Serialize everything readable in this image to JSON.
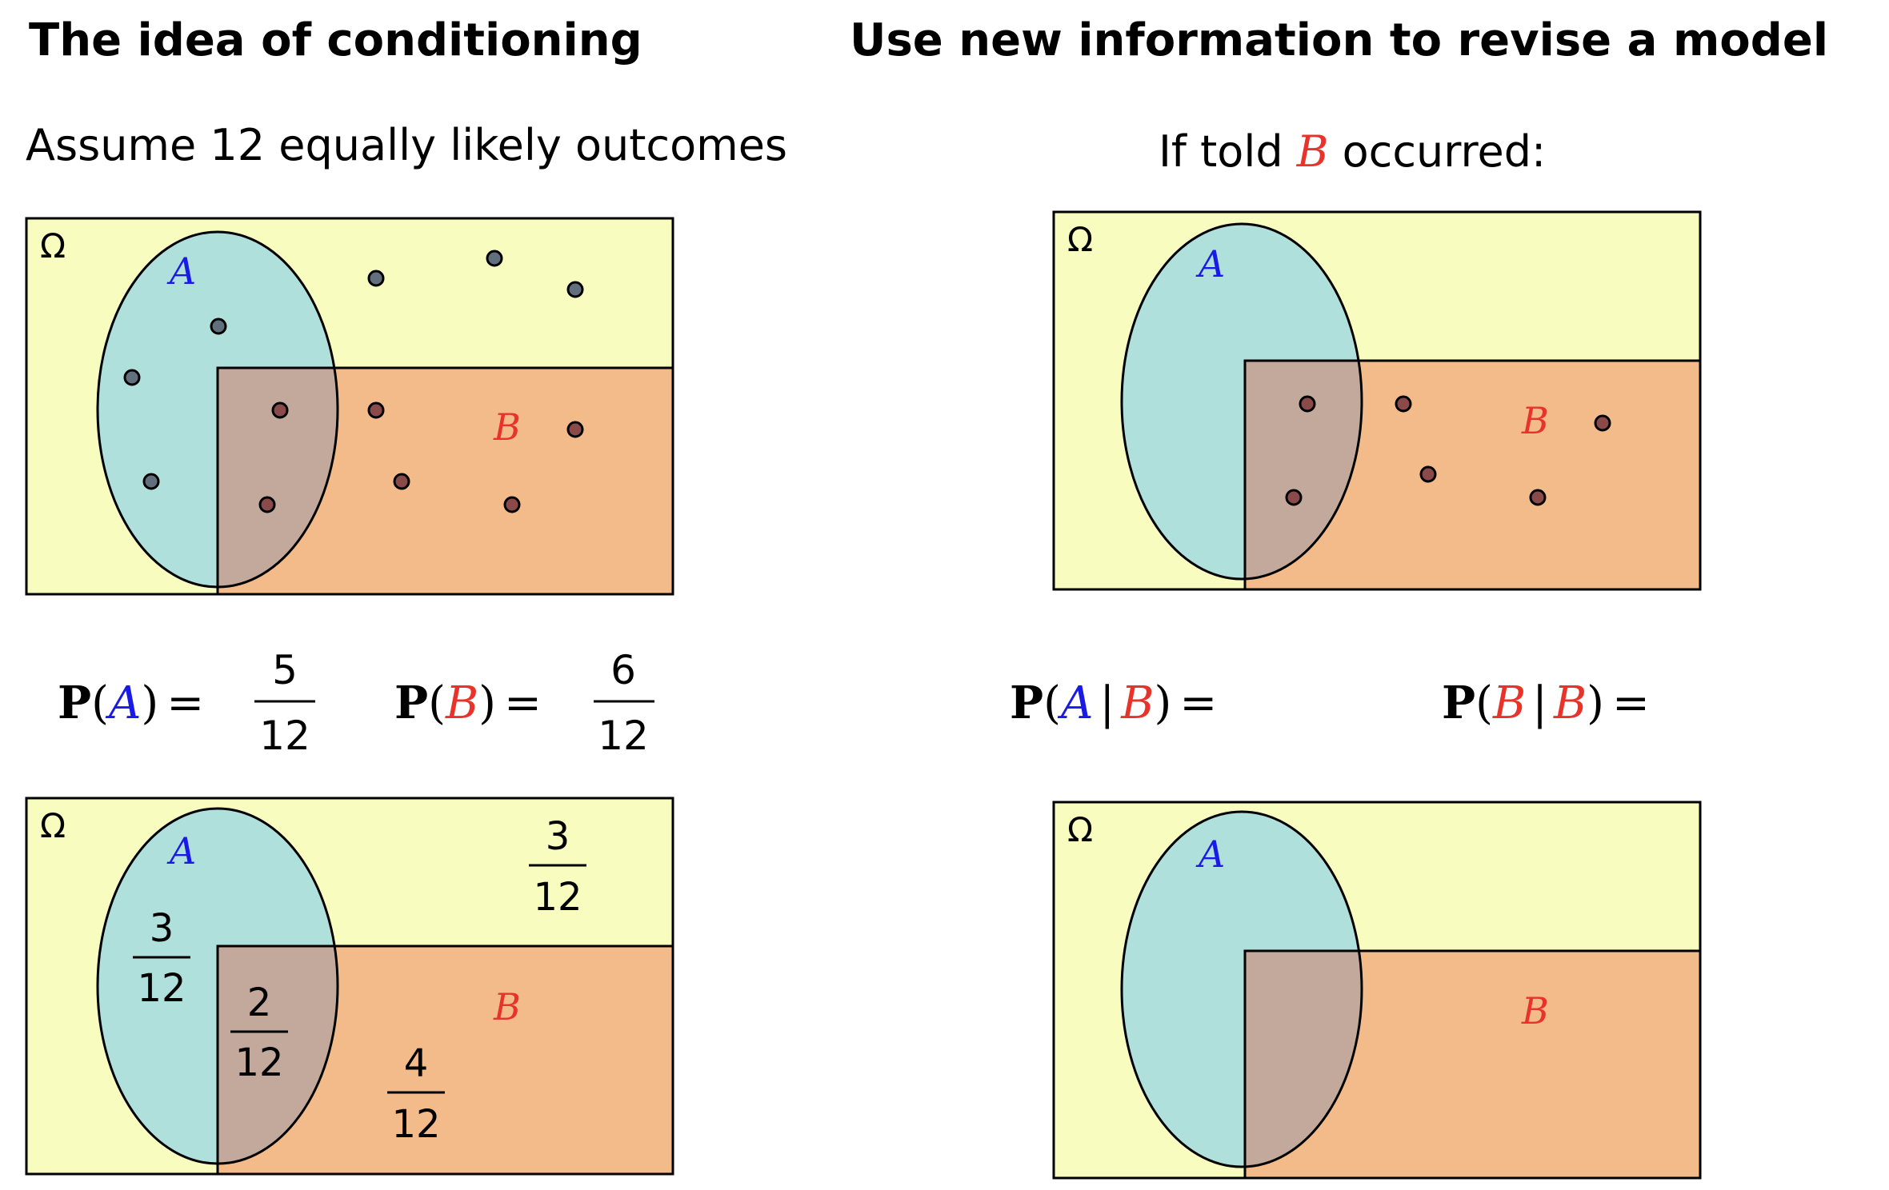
{
  "titles": {
    "left": "The idea of conditioning",
    "right": "Use new information to revise a model"
  },
  "captions": {
    "left": "Assume 12 equally likely outcomes",
    "right_prefix": "If told ",
    "right_event": "B",
    "right_suffix": " occurred:"
  },
  "labels": {
    "omega": "Ω",
    "event_a": "A",
    "event_b": "B"
  },
  "formulas": {
    "p_letter": "P",
    "given": "|",
    "equals": "=",
    "p_a": {
      "numerator": "5",
      "denominator": "12"
    },
    "p_b": {
      "numerator": "6",
      "denominator": "12"
    }
  },
  "region_probabilities": {
    "a_only": {
      "numerator": "3",
      "denominator": "12"
    },
    "a_and_b": {
      "numerator": "2",
      "denominator": "12"
    },
    "b_only": {
      "numerator": "4",
      "denominator": "12"
    },
    "neither": {
      "numerator": "3",
      "denominator": "12"
    }
  },
  "colors": {
    "omega_fill": "#f8fcbe",
    "a_fill": "#b0e0dc",
    "b_fill": "#f3ba8a",
    "overlap_fill": "#c2a99c",
    "event_a_color": "#1a1ae6",
    "event_b_color": "#e8332a",
    "outline": "#000000"
  },
  "outcome_counts": {
    "total": 12,
    "a_only": 3,
    "a_and_b": 2,
    "b_only": 4,
    "neither": 3
  }
}
